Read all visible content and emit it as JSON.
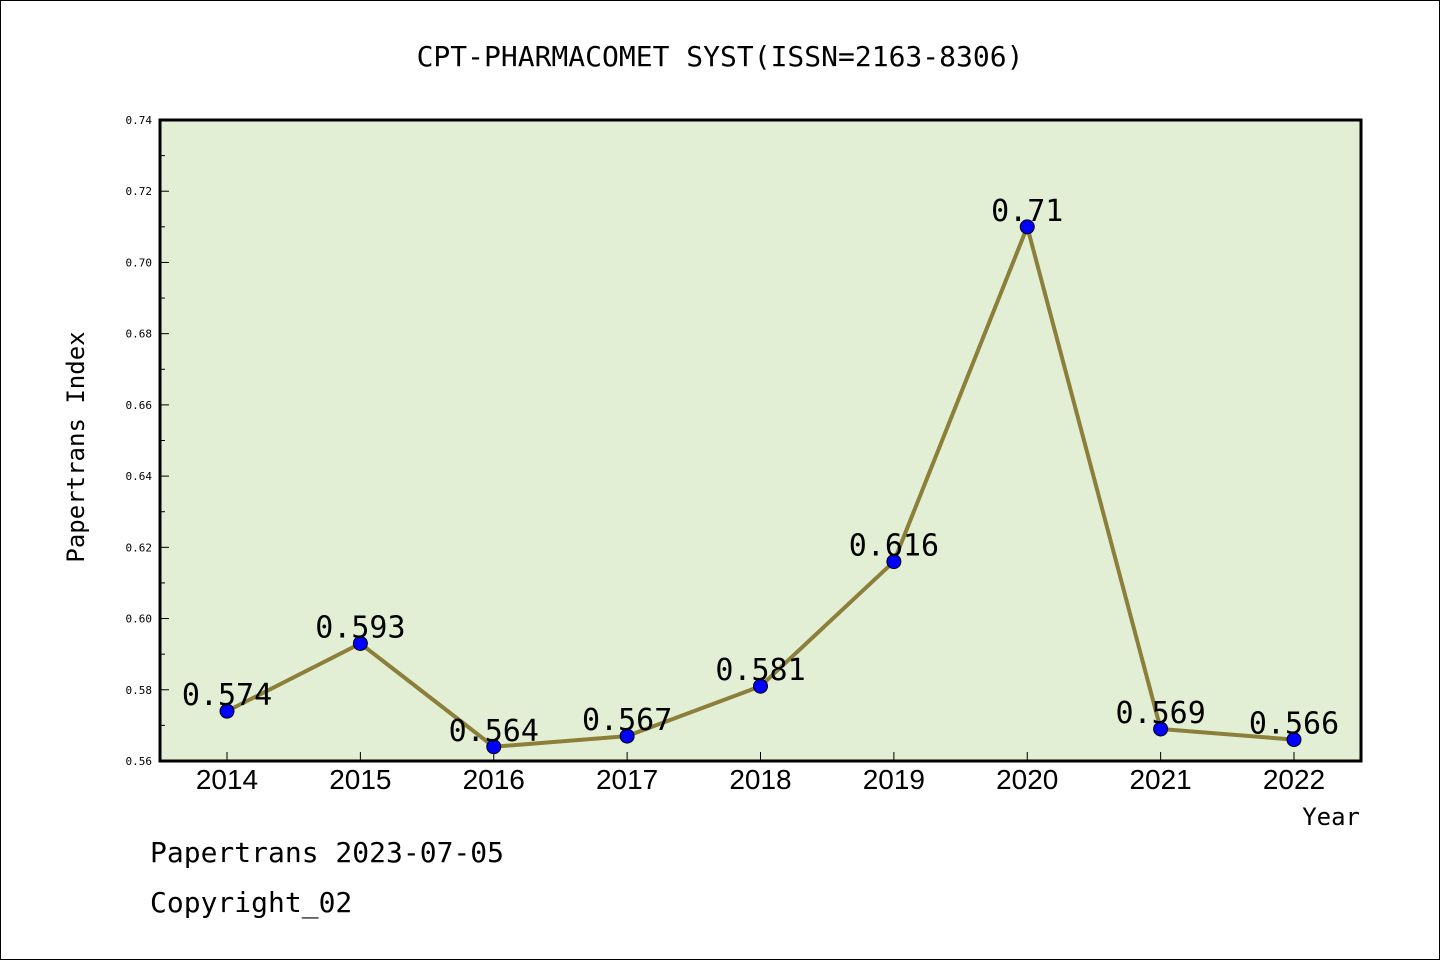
{
  "chart_data": {
    "type": "line",
    "title": "CPT-PHARMACOMET SYST(ISSN=2163-8306)",
    "xlabel": "Year",
    "ylabel": "Papertrans Index",
    "categories": [
      "2014",
      "2015",
      "2016",
      "2017",
      "2018",
      "2019",
      "2020",
      "2021",
      "2022"
    ],
    "values": [
      0.574,
      0.593,
      0.564,
      0.567,
      0.581,
      0.616,
      0.71,
      0.569,
      0.566
    ],
    "data_labels": [
      "0.574",
      "0.593",
      "0.564",
      "0.567",
      "0.581",
      "0.616",
      "0.71",
      "0.569",
      "0.566"
    ],
    "ylim": [
      0.56,
      0.74
    ],
    "yticks": [
      "0.56",
      "0.58",
      "0.60",
      "0.62",
      "0.64",
      "0.66",
      "0.68",
      "0.70",
      "0.72",
      "0.74"
    ],
    "grid": false,
    "colors": {
      "plot_background": "#e2efd5",
      "line": "#8b7f3a",
      "marker": "#0000ff"
    }
  },
  "footer": {
    "date_line": "Papertrans 2023-07-05",
    "copyright_line": "Copyright_02"
  }
}
